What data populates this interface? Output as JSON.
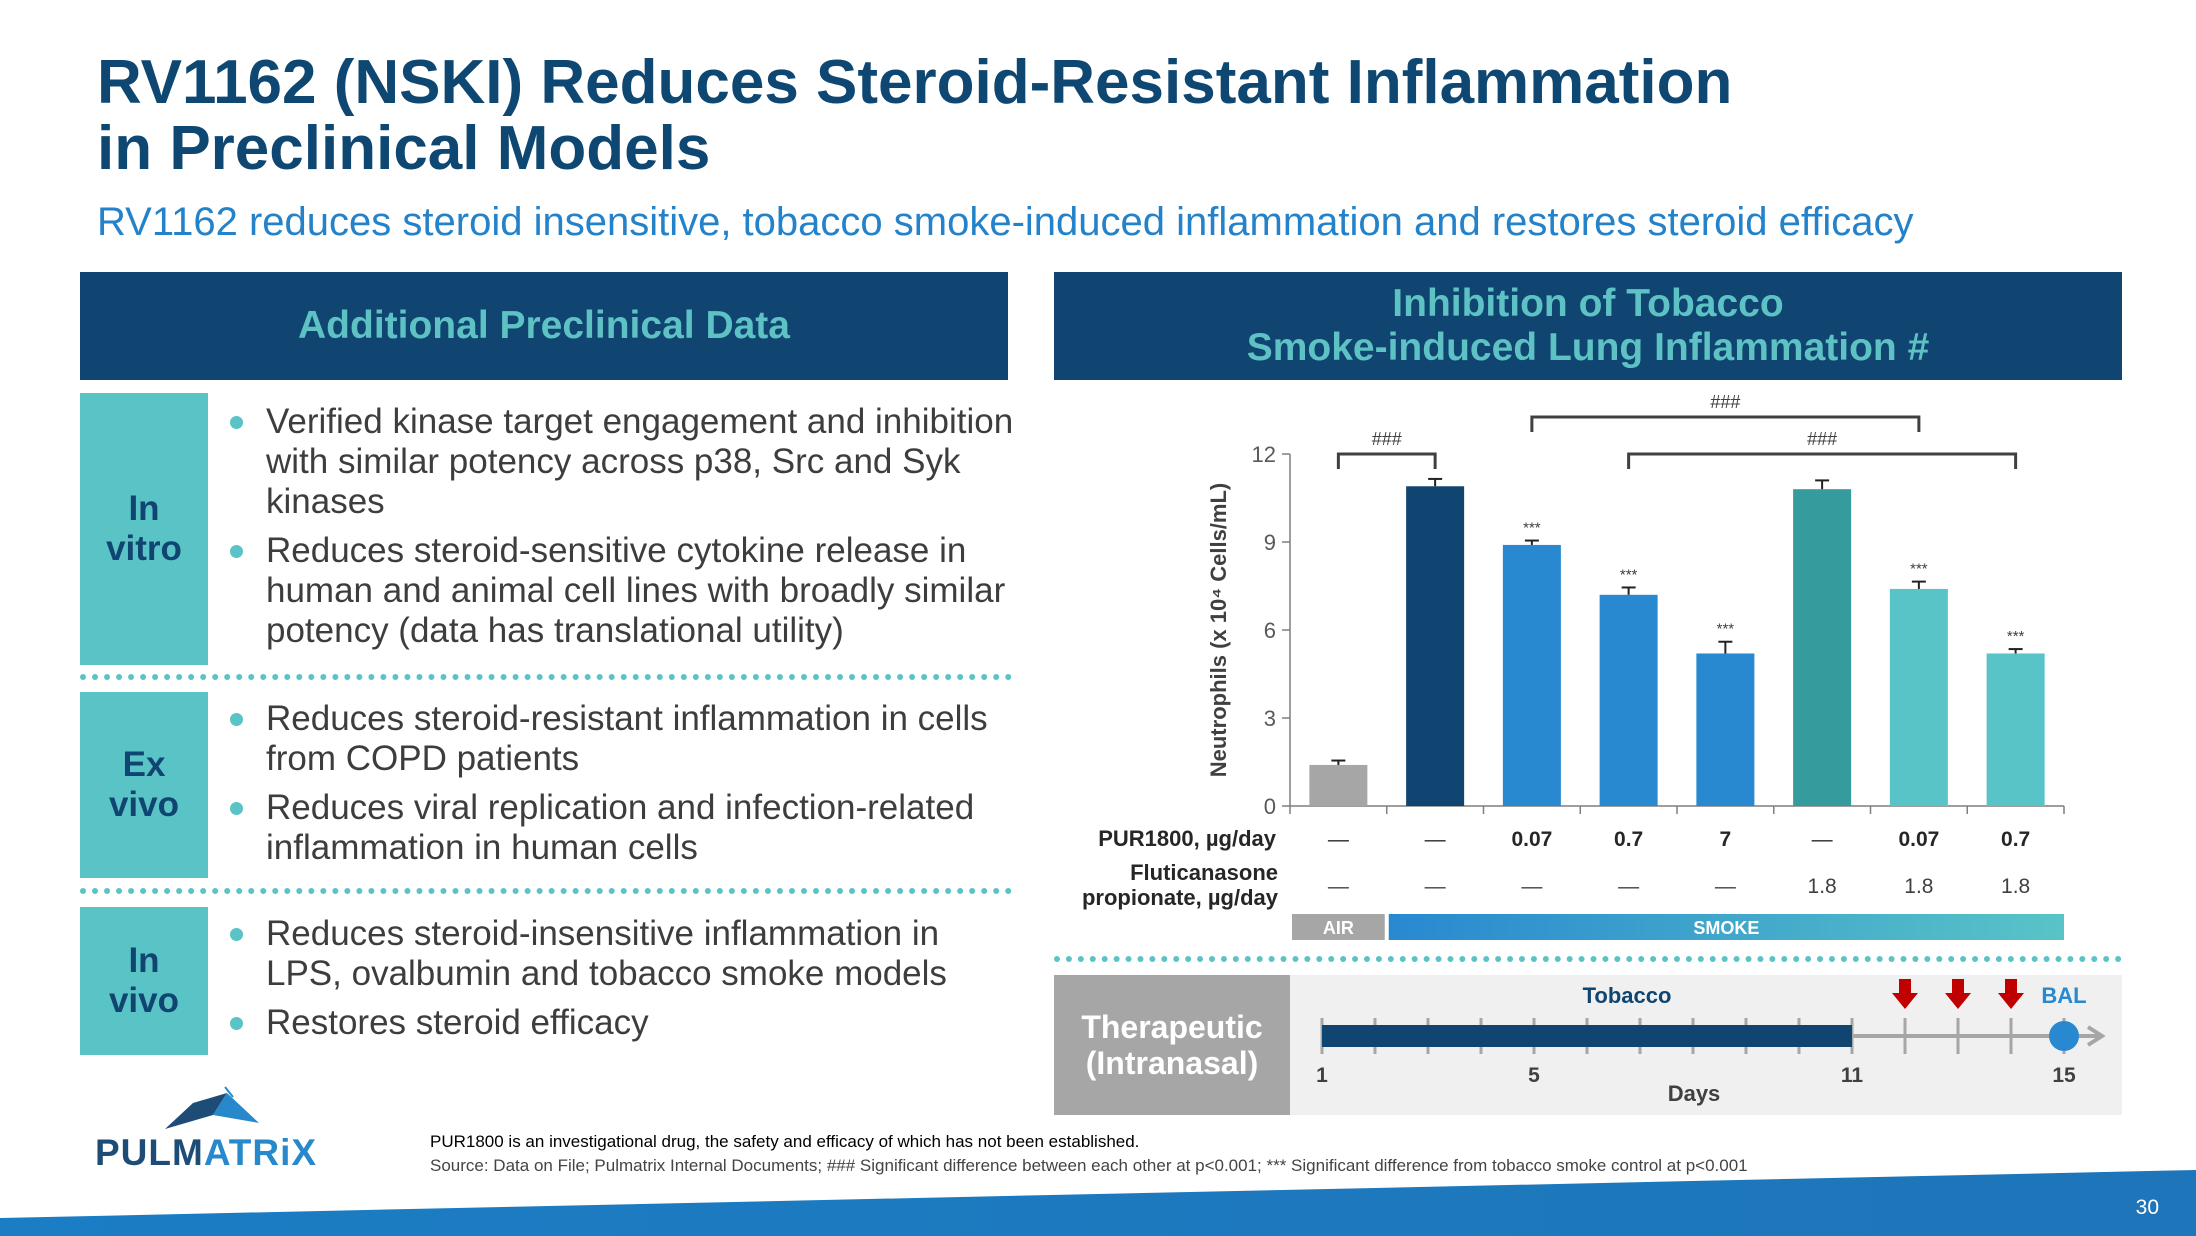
{
  "slide": {
    "title_line1": "RV1162 (NSKI) Reduces Steroid-Resistant Inflammation",
    "title_line2": "in Preclinical Models",
    "subtitle": "RV1162 reduces steroid insensitive, tobacco smoke-induced inflammation and restores steroid efficacy",
    "page_number": "30"
  },
  "left_panel": {
    "header": "Additional Preclinical Data",
    "sections": [
      {
        "label_line1": "In",
        "label_line2": "vitro",
        "bullets": [
          "Verified kinase target engagement and inhibition with similar potency across p38, Src and Syk kinases",
          "Reduces steroid-sensitive cytokine release in human and animal cell lines with broadly similar potency (data has translational utility)"
        ]
      },
      {
        "label_line1": "Ex",
        "label_line2": "vivo",
        "bullets": [
          "Reduces steroid-resistant inflammation in cells from COPD patients",
          "Reduces viral replication and infection-related inflammation in human cells"
        ]
      },
      {
        "label_line1": "In",
        "label_line2": "vivo",
        "bullets": [
          "Reduces steroid-insensitive inflammation in LPS, ovalbumin and tobacco smoke models",
          "Restores steroid efficacy"
        ]
      }
    ]
  },
  "right_panel": {
    "header_line1": "Inhibition of Tobacco",
    "header_line2": "Smoke-induced Lung Inflammation #"
  },
  "chart_data": {
    "type": "bar",
    "title": "Inhibition of Tobacco Smoke-induced Lung Inflammation #",
    "ylabel": "Neutrophils (x 10⁴ Cells/mL)",
    "ylim": [
      0,
      12
    ],
    "yticks": [
      "0",
      "3",
      "6",
      "9",
      "12"
    ],
    "values": [
      1.4,
      10.9,
      8.9,
      7.2,
      5.2,
      10.8,
      7.4,
      5.2
    ],
    "errors": [
      0.15,
      0.25,
      0.15,
      0.25,
      0.4,
      0.3,
      0.25,
      0.15
    ],
    "colors": [
      "#a6a6a6",
      "#0f4570",
      "#2889d0",
      "#2889d0",
      "#2889d0",
      "#369b9c",
      "#58c4c7",
      "#58c4c7"
    ],
    "significance": [
      "",
      "",
      "***",
      "***",
      "***",
      "",
      "***",
      "***"
    ],
    "comparison_brackets": [
      {
        "from": 0,
        "to": 1,
        "label": "###"
      },
      {
        "from": 2,
        "to": 6,
        "label": "###"
      },
      {
        "from": 3,
        "to": 7,
        "label": "###"
      }
    ],
    "row_labels": [
      {
        "line1": "PUR1800, µg/day",
        "line2": ""
      },
      {
        "line1": "Fluticanasone",
        "line2": "propionate, µg/day"
      }
    ],
    "pur1800_doses": [
      "—",
      "—",
      "0.07",
      "0.7",
      "7",
      "—",
      "0.07",
      "0.7"
    ],
    "fluticasone_doses": [
      "—",
      "—",
      "—",
      "—",
      "—",
      "1.8",
      "1.8",
      "1.8"
    ],
    "exposure": [
      {
        "label": "AIR",
        "start": 0,
        "end": 0,
        "color": "#a6a6a6"
      },
      {
        "label": "SMOKE",
        "start": 1,
        "end": 7,
        "color_start": "#2889d0",
        "color_end": "#58c4c7"
      }
    ],
    "grid": false
  },
  "timeline": {
    "label_line1": "Therapeutic",
    "label_line2": "(Intranasal)",
    "tobacco_label": "Tobacco",
    "bal_label": "BAL",
    "axis_label": "Days",
    "day_start": 1,
    "day_end": 15,
    "tobacco_from": 1,
    "tobacco_to": 11,
    "dose_days": [
      12,
      13,
      14
    ],
    "bal_day": 15,
    "tick_labels": [
      {
        "day": 1,
        "text": "1"
      },
      {
        "day": 5,
        "text": "5"
      },
      {
        "day": 11,
        "text": "11"
      },
      {
        "day": 15,
        "text": "15"
      }
    ],
    "bar_color": "#0f4570",
    "arrow_color": "#c00000",
    "bal_color": "#2889d0"
  },
  "logo": {
    "text_part1": "PULM",
    "text_part2": "ATRiX"
  },
  "footnotes": {
    "line1": "PUR1800 is an investigational drug, the safety and efficacy of which has not been established.",
    "line2": "Source: Data on File; Pulmatrix Internal Documents; ### Significant difference between each other at p<0.001; *** Significant difference from tobacco smoke control at p<0.001"
  }
}
